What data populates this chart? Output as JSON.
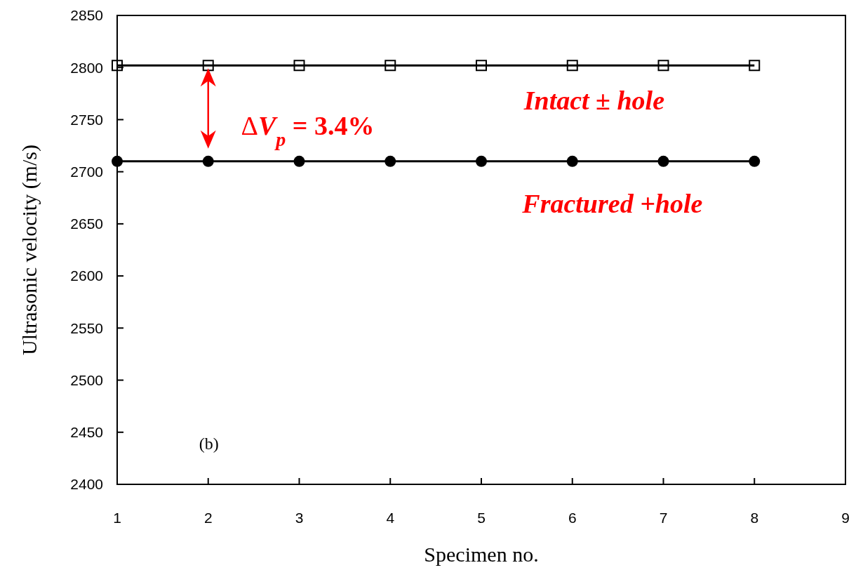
{
  "chart_data": {
    "type": "line",
    "xlabel": "Specimen no.",
    "ylabel": "Ultrasonic velocity (m/s)",
    "x": [
      1,
      2,
      3,
      4,
      5,
      6,
      7,
      8
    ],
    "series": [
      {
        "color": "#000000",
        "marker": "square",
        "values": [
          2802,
          2802,
          2802,
          2802,
          2802,
          2802,
          2802,
          2802
        ]
      },
      {
        "color": "#000000",
        "marker": "circle",
        "values": [
          2710,
          2710,
          2710,
          2710,
          2710,
          2710,
          2710,
          2710
        ]
      }
    ],
    "xlim": [
      1,
      9
    ],
    "xticks": [
      1,
      2,
      3,
      4,
      5,
      6,
      7,
      8,
      9
    ],
    "ylim": [
      2400,
      2850
    ],
    "yticks": [
      2400,
      2450,
      2500,
      2550,
      2600,
      2650,
      2700,
      2750,
      2800,
      2850
    ],
    "annotations": [
      "ΔV$_{p}$ = 3.4%",
      "Intact ± hole",
      "Fractured +hole",
      "(b)"
    ],
    "grid": false
  }
}
